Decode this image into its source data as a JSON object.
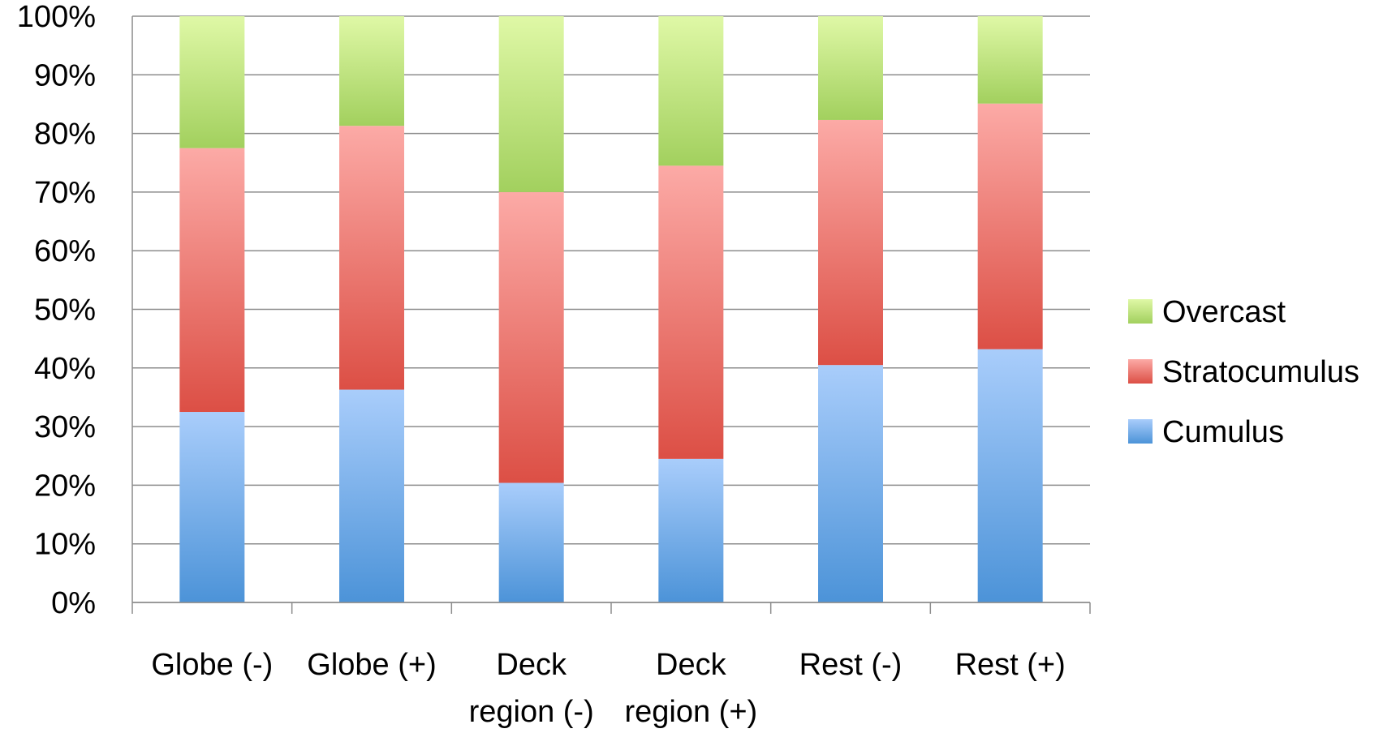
{
  "chart_data": {
    "type": "bar",
    "stacked": true,
    "percent_stacked": true,
    "categories": [
      [
        "Globe (-)"
      ],
      [
        "Globe (+)"
      ],
      [
        "Deck",
        "region (-)"
      ],
      [
        "Deck",
        "region (+)"
      ],
      [
        "Rest (-)"
      ],
      [
        "Rest (+)"
      ]
    ],
    "series": [
      {
        "name": "Cumulus",
        "values": [
          32.5,
          36.3,
          20.4,
          24.5,
          40.5,
          43.2
        ],
        "color_light": "#a9cdfb",
        "color_dark": "#4c93d8"
      },
      {
        "name": "Stratocumulus",
        "values": [
          45.0,
          45.0,
          49.6,
          50.0,
          41.8,
          41.9
        ],
        "color_light": "#fcaaa6",
        "color_dark": "#dc4f45"
      },
      {
        "name": "Overcast",
        "values": [
          22.5,
          18.7,
          30.0,
          25.5,
          17.7,
          14.9
        ],
        "color_light": "#dff8a6",
        "color_dark": "#a2d05e"
      }
    ],
    "yticks": [
      "0%",
      "10%",
      "20%",
      "30%",
      "40%",
      "50%",
      "60%",
      "70%",
      "80%",
      "90%",
      "100%"
    ],
    "ylim": [
      0,
      100
    ],
    "grid": true,
    "legend_position": "right",
    "legend_order": [
      "Overcast",
      "Stratocumulus",
      "Cumulus"
    ],
    "title": "",
    "xlabel": "",
    "ylabel": ""
  }
}
